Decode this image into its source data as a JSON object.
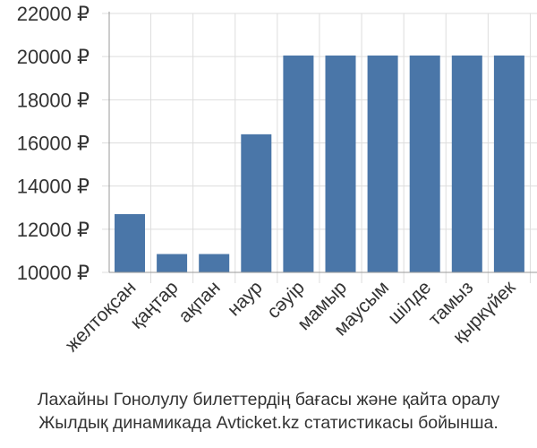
{
  "chart_data": {
    "type": "bar",
    "categories": [
      "желтоқсан",
      "қаңтар",
      "ақпан",
      "наур",
      "сәуір",
      "мамыр",
      "маусым",
      "шілде",
      "тамыз",
      "қыркүйек"
    ],
    "values": [
      12700,
      10850,
      10850,
      16400,
      20050,
      20050,
      20050,
      20050,
      20050,
      20050
    ],
    "ylim": [
      10000,
      22000
    ],
    "yticks": [
      10000,
      12000,
      14000,
      16000,
      18000,
      20000,
      22000
    ],
    "ytick_suffix": " ₽",
    "grid": true,
    "bar_color": "#4a76a8",
    "grid_color": "#dddddd",
    "axis_color": "#999999"
  },
  "caption": {
    "line1": "Лахайны Гонолулу билеттердің бағасы және қайта оралу",
    "line2": "Жылдық динамикада Avticket.kz статистикасы бойынша."
  }
}
